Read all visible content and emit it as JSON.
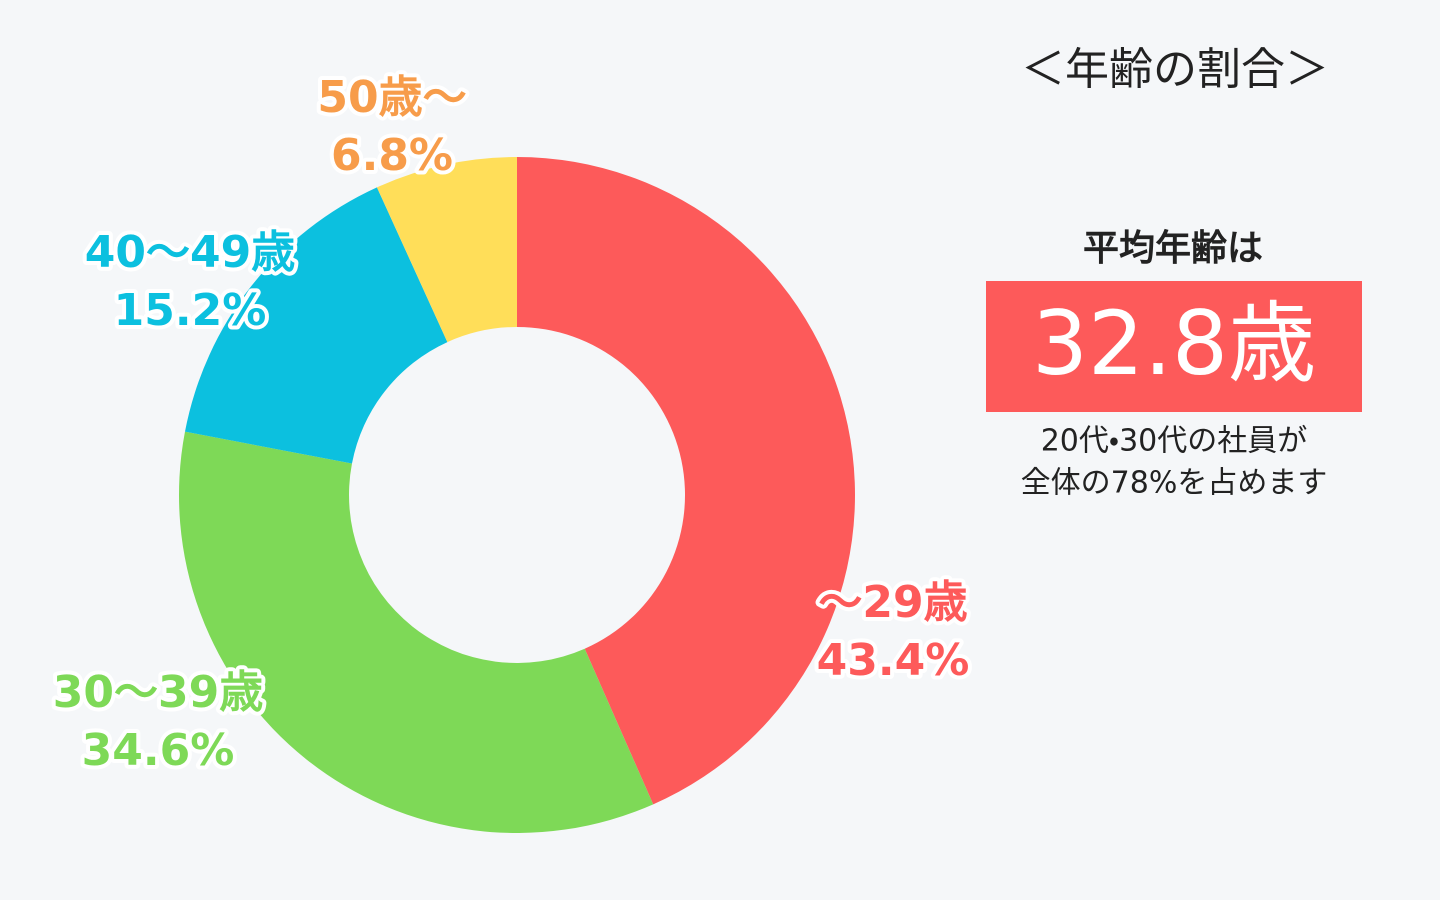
{
  "chart_data": {
    "type": "donut",
    "title": "＜年齢の割合＞",
    "categories": [
      "～29歳",
      "30～39歳",
      "40～49歳",
      "50歳～"
    ],
    "values": [
      43.4,
      34.6,
      15.2,
      6.8
    ],
    "value_labels": [
      "43.4%",
      "34.6%",
      "15.2%",
      "6.8%"
    ],
    "colors": [
      "#fd5a5a",
      "#7ed957",
      "#0cc0df",
      "#ffde59"
    ],
    "label_colors": [
      "#fd5a5a",
      "#7ed957",
      "#0cc0df",
      "#f79c4a"
    ],
    "annotations": [
      "平均年齢は",
      "32.8歳",
      "20代・30代の社員が",
      "全体の78%を占めます"
    ]
  }
}
